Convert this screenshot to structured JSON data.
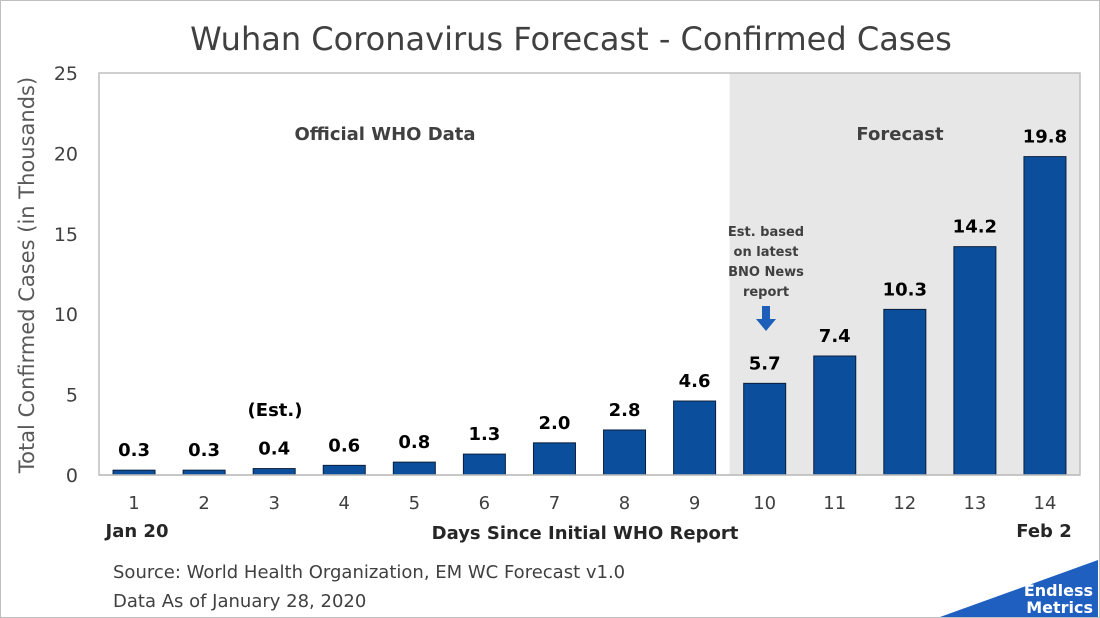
{
  "chart_data": {
    "type": "bar",
    "title": "Wuhan Coronavirus Forecast - Confirmed Cases",
    "xlabel": "Days Since Initial WHO Report",
    "ylabel": "Total Confirmed Cases (in Thousands)",
    "ylim": [
      0,
      25
    ],
    "yticks": [
      "0",
      "5",
      "10",
      "15",
      "20",
      "25"
    ],
    "categories": [
      "1",
      "2",
      "3",
      "4",
      "5",
      "6",
      "7",
      "8",
      "9",
      "10",
      "11",
      "12",
      "13",
      "14"
    ],
    "values": [
      0.3,
      0.3,
      0.4,
      0.6,
      0.8,
      1.3,
      2.0,
      2.8,
      4.6,
      5.7,
      7.4,
      10.3,
      14.2,
      19.8
    ],
    "value_labels": [
      "0.3",
      "0.3",
      "0.4",
      "0.6",
      "0.8",
      "1.3",
      "2.0",
      "2.8",
      "4.6",
      "5.7",
      "7.4",
      "10.3",
      "14.2",
      "19.8"
    ],
    "bar_color": "#0b4f9c",
    "forecast_shade_color": "#e7e7e7",
    "grid": false,
    "legend": "none",
    "start_date_label": "Jan 20",
    "end_date_label": "Feb 2",
    "regions": {
      "official_label": "Official WHO Data",
      "forecast_label": "Forecast"
    },
    "annotations": {
      "est_label": "(Est.)",
      "note_lines": [
        "Est. based",
        "on latest",
        "BNO News",
        "report"
      ]
    }
  },
  "footer": {
    "source": "Source: World Health Organization, EM WC Forecast v1.0",
    "data_as_of": "Data As of January 28, 2020"
  },
  "logo": {
    "line1": "Endless",
    "line2": "Metrics",
    "color": "#1f5fbf"
  },
  "icons": {
    "note_arrow": "down-arrow-icon"
  }
}
